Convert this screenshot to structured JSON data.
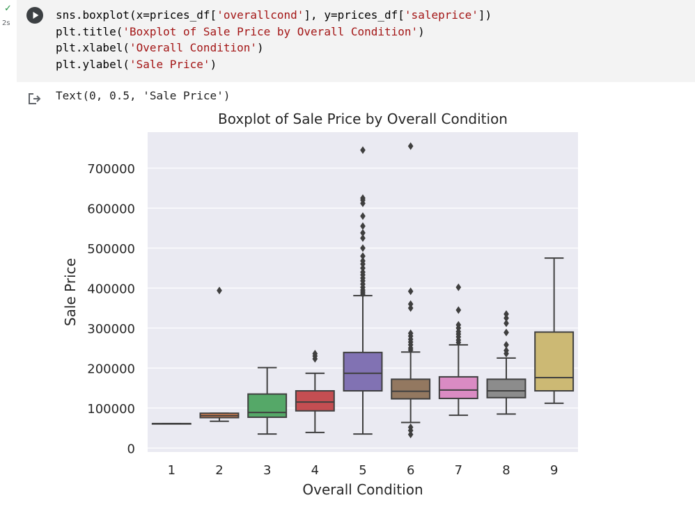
{
  "cell": {
    "status_icon": "check-icon",
    "exec_time": "2s",
    "run_icon": "play-icon",
    "code_lines": [
      {
        "pre": "sns.boxplot(x=prices_df[",
        "s1": "'overallcond'",
        "mid": "], y=prices_df[",
        "s2": "'saleprice'",
        "post": "])"
      },
      {
        "pre": "plt.title(",
        "s1": "'Boxplot of Sale Price by Overall Condition'",
        "mid": ")",
        "s2": "",
        "post": ""
      },
      {
        "pre": "plt.xlabel(",
        "s1": "'Overall Condition'",
        "mid": ")",
        "s2": "",
        "post": ""
      },
      {
        "pre": "plt.ylabel(",
        "s1": "'Sale Price'",
        "mid": ")",
        "s2": "",
        "post": ""
      }
    ]
  },
  "output": {
    "icon": "output-redirect-icon",
    "text": "Text(0, 0.5, 'Sale Price')"
  },
  "chart_data": {
    "type": "box",
    "title": "Boxplot of Sale Price by Overall Condition",
    "xlabel": "Overall Condition",
    "ylabel": "Sale Price",
    "ylim": [
      -10000,
      790000
    ],
    "yticks": [
      0,
      100000,
      200000,
      300000,
      400000,
      500000,
      600000,
      700000
    ],
    "grid": true,
    "categories": [
      "1",
      "2",
      "3",
      "4",
      "5",
      "6",
      "7",
      "8",
      "9"
    ],
    "boxes": [
      {
        "category": "1",
        "color": "#4c72b0",
        "whislo": 61000,
        "q1": 61000,
        "median": 61000,
        "q3": 61000,
        "whishi": 61000,
        "fliers": []
      },
      {
        "category": "2",
        "color": "#dd8452",
        "whislo": 67000,
        "q1": 76000,
        "median": 81000,
        "q3": 87000,
        "whishi": 87000,
        "fliers": [
          394000
        ]
      },
      {
        "category": "3",
        "color": "#55a868",
        "whislo": 35000,
        "q1": 77000,
        "median": 89000,
        "q3": 135000,
        "whishi": 201000,
        "fliers": []
      },
      {
        "category": "4",
        "color": "#c44e52",
        "whislo": 39000,
        "q1": 93000,
        "median": 115000,
        "q3": 143000,
        "whishi": 187000,
        "fliers": [
          223000,
          230000,
          236000
        ]
      },
      {
        "category": "5",
        "color": "#8172b3",
        "whislo": 35000,
        "q1": 143000,
        "median": 187000,
        "q3": 239000,
        "whishi": 381000,
        "fliers": [
          385000,
          390000,
          395000,
          402000,
          410000,
          418000,
          425000,
          433000,
          440000,
          450000,
          460000,
          468000,
          480000,
          500000,
          525000,
          538000,
          555000,
          580000,
          612000,
          620000,
          625000,
          745000
        ]
      },
      {
        "category": "6",
        "color": "#937860",
        "whislo": 64000,
        "q1": 123000,
        "median": 142000,
        "q3": 172000,
        "whishi": 240000,
        "fliers": [
          34000,
          44000,
          52000,
          245000,
          250000,
          258000,
          265000,
          272000,
          280000,
          287000,
          350000,
          360000,
          392000,
          755000
        ]
      },
      {
        "category": "7",
        "color": "#da8bc3",
        "whislo": 82000,
        "q1": 124000,
        "median": 145000,
        "q3": 178000,
        "whishi": 258000,
        "fliers": [
          264000,
          270000,
          278000,
          285000,
          291000,
          300000,
          308000,
          345000,
          402000
        ]
      },
      {
        "category": "8",
        "color": "#8c8c8c",
        "whislo": 85000,
        "q1": 126000,
        "median": 143000,
        "q3": 172000,
        "whishi": 225000,
        "fliers": [
          236000,
          244000,
          258000,
          289000,
          312000,
          325000,
          335000
        ]
      },
      {
        "category": "9",
        "color": "#ccb974",
        "whislo": 112000,
        "q1": 143000,
        "median": 176000,
        "q3": 290000,
        "whishi": 475000,
        "fliers": []
      }
    ]
  }
}
